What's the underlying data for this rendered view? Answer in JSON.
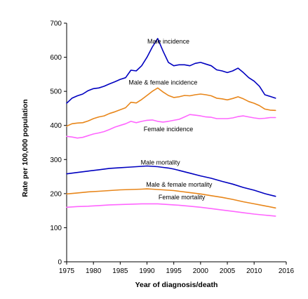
{
  "chart_data": {
    "type": "line",
    "xlabel": "Year of diagnosis/death",
    "ylabel": "Rate per 100,000 population",
    "xlim": [
      1975,
      2016
    ],
    "ylim": [
      0,
      700
    ],
    "x_ticks": [
      1975,
      1980,
      1985,
      1990,
      1995,
      2000,
      2005,
      2010,
      2016
    ],
    "x_tick_labels": [
      "1975",
      "1980",
      "1985",
      "1990",
      "1995",
      "2000",
      "2005",
      "2010",
      "2016"
    ],
    "y_ticks": [
      0,
      100,
      200,
      300,
      400,
      500,
      600,
      700
    ],
    "y_tick_labels": [
      "0",
      "100",
      "200",
      "300",
      "400",
      "500",
      "600",
      "700"
    ],
    "grid": false,
    "legend": "none",
    "series": [
      {
        "name": "Male incidence",
        "color": "#0000c0",
        "x": [
          1975,
          1976,
          1977,
          1978,
          1979,
          1980,
          1981,
          1982,
          1983,
          1984,
          1985,
          1986,
          1987,
          1988,
          1989,
          1990,
          1991,
          1992,
          1993,
          1994,
          1995,
          1996,
          1997,
          1998,
          1999,
          2000,
          2001,
          2002,
          2003,
          2004,
          2005,
          2006,
          2007,
          2008,
          2009,
          2010,
          2011,
          2012,
          2013,
          2014
        ],
        "y": [
          465,
          480,
          487,
          492,
          502,
          508,
          510,
          515,
          522,
          528,
          535,
          540,
          562,
          560,
          575,
          600,
          630,
          655,
          618,
          585,
          575,
          578,
          578,
          575,
          582,
          585,
          580,
          575,
          563,
          560,
          555,
          560,
          568,
          555,
          540,
          530,
          515,
          490,
          485,
          480
        ]
      },
      {
        "name": "Male & female incidence",
        "color": "#e8861a",
        "x": [
          1975,
          1976,
          1977,
          1978,
          1979,
          1980,
          1981,
          1982,
          1983,
          1984,
          1985,
          1986,
          1987,
          1988,
          1989,
          1990,
          1991,
          1992,
          1993,
          1994,
          1995,
          1996,
          1997,
          1998,
          1999,
          2000,
          2001,
          2002,
          2003,
          2004,
          2005,
          2006,
          2007,
          2008,
          2009,
          2010,
          2011,
          2012,
          2013,
          2014
        ],
        "y": [
          398,
          405,
          407,
          408,
          413,
          420,
          425,
          428,
          435,
          440,
          446,
          452,
          468,
          466,
          476,
          488,
          500,
          510,
          498,
          488,
          482,
          484,
          488,
          487,
          490,
          492,
          490,
          487,
          480,
          478,
          475,
          479,
          484,
          478,
          470,
          465,
          458,
          448,
          445,
          444
        ]
      },
      {
        "name": "Female incidence",
        "color": "#ff66ff",
        "x": [
          1975,
          1976,
          1977,
          1978,
          1979,
          1980,
          1981,
          1982,
          1983,
          1984,
          1985,
          1986,
          1987,
          1988,
          1989,
          1990,
          1991,
          1992,
          1993,
          1994,
          1995,
          1996,
          1997,
          1998,
          1999,
          2000,
          2001,
          2002,
          2003,
          2004,
          2005,
          2006,
          2007,
          2008,
          2009,
          2010,
          2011,
          2012,
          2013,
          2014
        ],
        "y": [
          368,
          366,
          363,
          365,
          370,
          375,
          378,
          382,
          388,
          395,
          400,
          405,
          412,
          408,
          412,
          415,
          416,
          412,
          410,
          412,
          415,
          418,
          425,
          432,
          430,
          428,
          425,
          424,
          420,
          420,
          420,
          422,
          426,
          428,
          425,
          422,
          420,
          421,
          423,
          423
        ]
      },
      {
        "name": "Male mortality",
        "color": "#0000c0",
        "x": [
          1975,
          1977,
          1979,
          1981,
          1983,
          1985,
          1987,
          1989,
          1990,
          1991,
          1992,
          1993,
          1994,
          1995,
          1996,
          1998,
          2000,
          2002,
          2004,
          2006,
          2008,
          2010,
          2012,
          2014
        ],
        "y": [
          258,
          262,
          266,
          270,
          274,
          276,
          278,
          280,
          281,
          280,
          279,
          277,
          275,
          272,
          268,
          260,
          252,
          245,
          236,
          228,
          218,
          210,
          200,
          192
        ]
      },
      {
        "name": "Male & female mortality",
        "color": "#e8861a",
        "x": [
          1975,
          1977,
          1979,
          1981,
          1983,
          1985,
          1987,
          1989,
          1990,
          1991,
          1992,
          1993,
          1994,
          1995,
          1996,
          1998,
          2000,
          2002,
          2004,
          2006,
          2008,
          2010,
          2012,
          2014
        ],
        "y": [
          199,
          202,
          205,
          207,
          209,
          211,
          212,
          213,
          214,
          213,
          212,
          211,
          210,
          209,
          207,
          203,
          199,
          194,
          189,
          183,
          176,
          170,
          164,
          158
        ]
      },
      {
        "name": "Female mortality",
        "color": "#ff66ff",
        "x": [
          1975,
          1977,
          1979,
          1981,
          1983,
          1985,
          1987,
          1989,
          1990,
          1991,
          1992,
          1993,
          1994,
          1995,
          1996,
          1998,
          2000,
          2002,
          2004,
          2006,
          2008,
          2010,
          2012,
          2014
        ],
        "y": [
          160,
          162,
          163,
          165,
          167,
          168,
          169,
          170,
          170,
          170,
          170,
          169,
          168,
          167,
          166,
          163,
          160,
          156,
          152,
          148,
          144,
          140,
          137,
          134
        ]
      }
    ],
    "annotations": [
      {
        "text": "Male incidence",
        "x": 1994,
        "y": 640
      },
      {
        "text": "Male & female incidence",
        "x": 1993,
        "y": 520
      },
      {
        "text": "Female incidence",
        "x": 1994,
        "y": 383
      },
      {
        "text": "Male mortality",
        "x": 1992.5,
        "y": 285
      },
      {
        "text": "Male & female mortality",
        "x": 1996,
        "y": 220
      },
      {
        "text": "Female mortality",
        "x": 1996.5,
        "y": 183
      }
    ]
  }
}
